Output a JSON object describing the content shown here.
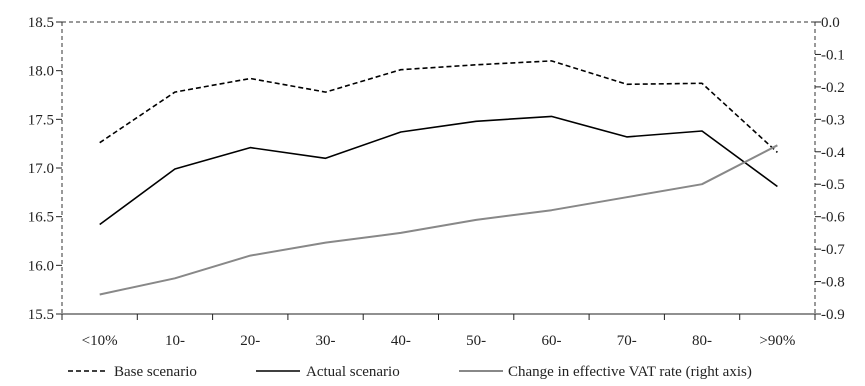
{
  "chart_data": {
    "type": "line",
    "title": "",
    "xlabel": "",
    "ylabel": "",
    "y2label": "",
    "categories": [
      "<10%",
      "10-",
      "20-",
      "30-",
      "40-",
      "50-",
      "60-",
      "70-",
      "80-",
      ">90%"
    ],
    "ylim": [
      15.5,
      18.5
    ],
    "y_ticks": [
      "15.5",
      "16.0",
      "16.5",
      "17.0",
      "17.5",
      "18.0",
      "18.5"
    ],
    "y2lim": [
      -0.9,
      0.0
    ],
    "y2_ticks": [
      "-0.9",
      "-0.8",
      "-0.7",
      "-0.6",
      "-0.5",
      "-0.4",
      "-0.3",
      "-0.2",
      "-0.1",
      "0.0"
    ],
    "grid": false,
    "legend_position": "bottom",
    "series": [
      {
        "name": "Base scenario",
        "axis": "left",
        "style": "dashed",
        "color": "#000000",
        "values": [
          17.26,
          17.78,
          17.92,
          17.78,
          18.01,
          18.06,
          18.1,
          17.86,
          17.87,
          17.16
        ]
      },
      {
        "name": "Actual scenario",
        "axis": "left",
        "style": "solid",
        "color": "#000000",
        "values": [
          16.42,
          16.99,
          17.21,
          17.1,
          17.37,
          17.48,
          17.53,
          17.32,
          17.38,
          16.81
        ]
      },
      {
        "name": "Change in effective VAT rate (right axis)",
        "axis": "right",
        "style": "solid",
        "color": "#888888",
        "values": [
          -0.84,
          -0.79,
          -0.72,
          -0.68,
          -0.65,
          -0.61,
          -0.58,
          -0.54,
          -0.5,
          -0.38
        ]
      }
    ]
  }
}
